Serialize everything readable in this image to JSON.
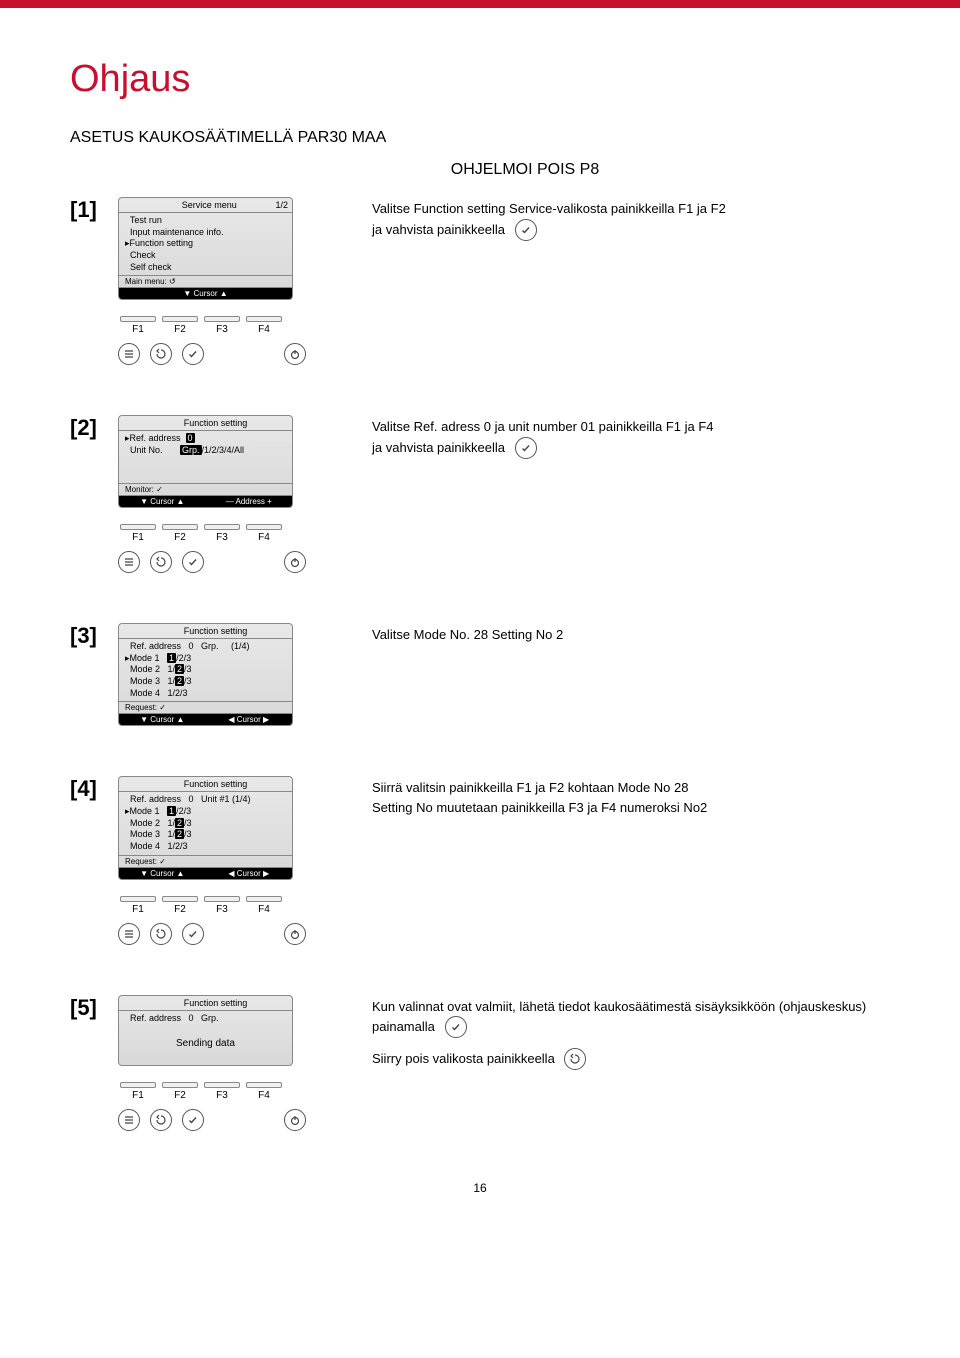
{
  "colors": {
    "brand_red": "#c8102e",
    "lcd_bg_top": "#e8e8e8",
    "lcd_bg_bottom": "#d8d8d8",
    "lcd_border": "#888888",
    "btn_border": "#555555",
    "text": "#000000"
  },
  "page_title": "Ohjaus",
  "section_title": "ASETUS KAUKOSÄÄTIMELLÄ PAR30 MAA",
  "subtitle": "OHJELMOI POIS P8",
  "fkeys": [
    "F1",
    "F2",
    "F3",
    "F4"
  ],
  "page_number": "16",
  "icons": {
    "menu": "menu",
    "back": "back-arrow",
    "check": "checkmark",
    "power": "power"
  },
  "steps": [
    {
      "label": "[1]",
      "lcd": {
        "header_center": "Service menu",
        "header_right": "1/2",
        "rows": [
          "  Test run",
          "  Input maintenance info.",
          "▸Function setting",
          "  Check",
          "  Self check"
        ],
        "subfooter_left": "Main menu: ↺",
        "footer": [
          "▼ Cursor ▲"
        ]
      },
      "desc_line1": "Valitse Function setting Service-valikosta painikkeilla F1 ja F2",
      "desc_line2": "ja vahvista painikkeella",
      "desc_icon": "check",
      "show_fkeys": true,
      "show_round": true
    },
    {
      "label": "[2]",
      "lcd": {
        "header_center": "Function setting",
        "header_right": "",
        "rows_rich": [
          {
            "pre": "▸Ref. address  ",
            "inv": "0"
          },
          {
            "pre": "  Unit No.       ",
            "inv": "Grp.",
            "post": "/1/2/3/4/All"
          }
        ],
        "spacer_height": 24,
        "subfooter_left": "Monitor: ✓",
        "footer": [
          "▼ Cursor ▲",
          "— Address +"
        ]
      },
      "desc_line1": "Valitse Ref. adress 0 ja unit number 01 painikkeilla F1 ja F4",
      "desc_line2": "ja vahvista painikkeella",
      "desc_icon": "check",
      "show_fkeys": true,
      "show_round": true
    },
    {
      "label": "[3]",
      "lcd": {
        "header_center": "Function setting",
        "header_right": "",
        "rows_rich": [
          {
            "pre": "  Ref. address   0   Grp.     (1/4)"
          },
          {
            "pre": "▸Mode 1   ",
            "inv": "1",
            "post": "/2/3"
          },
          {
            "pre": "  Mode 2   1/",
            "inv": "2",
            "post": "/3"
          },
          {
            "pre": "  Mode 3   1/",
            "inv": "2",
            "post": "/3"
          },
          {
            "pre": "  Mode 4   1/2/3"
          }
        ],
        "subfooter_left": "Request: ✓",
        "footer": [
          "▼ Cursor ▲",
          "◀ Cursor ▶"
        ]
      },
      "desc_line1": "Valitse Mode No. 28 Setting No 2",
      "show_fkeys": false,
      "show_round": false
    },
    {
      "label": "[4]",
      "lcd": {
        "header_center": "Function setting",
        "header_right": "",
        "rows_rich": [
          {
            "pre": "  Ref. address   0   Unit #1 (1/4)"
          },
          {
            "pre": "▸Mode 1   ",
            "inv": "1",
            "post": "/2/3"
          },
          {
            "pre": "  Mode 2   1/",
            "inv": "2",
            "post": "/3"
          },
          {
            "pre": "  Mode 3   1/",
            "inv": "2",
            "post": "/3"
          },
          {
            "pre": "  Mode 4   1/2/3"
          }
        ],
        "subfooter_left": "Request: ✓",
        "footer": [
          "▼ Cursor ▲",
          "◀ Cursor ▶"
        ]
      },
      "desc_line1": "Siirrä valitsin painikkeilla F1 ja F2 kohtaan Mode No 28",
      "desc_line2": "Setting No muutetaan painikkeilla F3 ja F4 numeroksi No2",
      "show_fkeys": true,
      "show_round": true
    },
    {
      "label": "[5]",
      "lcd": {
        "header_center": "Function setting",
        "header_right": "",
        "rows": [
          "  Ref. address   0   Grp."
        ],
        "centered_text": "Sending data"
      },
      "desc_line1": "Kun valinnat ovat valmiit, lähetä tiedot kaukosäätimestä sisäyksikköön (ohjauskeskus)",
      "desc_line2": "painamalla",
      "desc_icon": "check",
      "desc_line3": "Siirry pois valikosta painikkeella",
      "desc_icon3": "back",
      "show_fkeys": true,
      "show_round": true
    }
  ]
}
